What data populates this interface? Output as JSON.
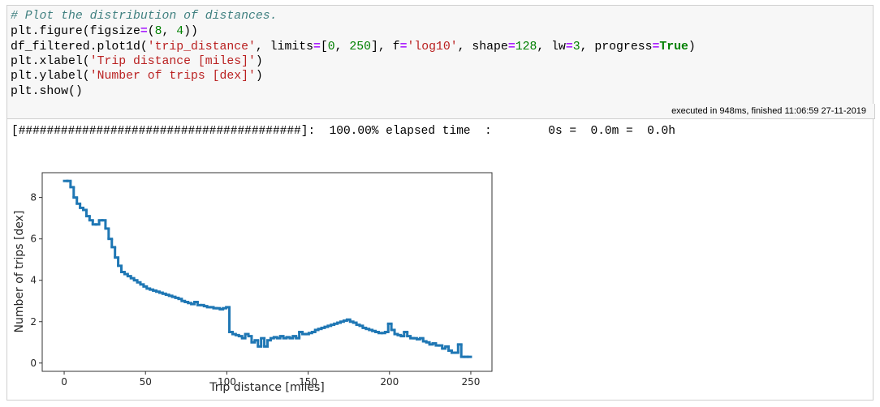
{
  "code": {
    "lines": [
      "# Plot the distribution of distances.",
      "plt.figure(figsize=(8, 4))",
      "df_filtered.plot1d('trip_distance', limits=[0, 250], f='log10', shape=128, lw=3, progress=True)",
      "plt.xlabel('Trip distance [miles]')",
      "plt.ylabel('Number of trips [dex]')",
      "plt.show()"
    ],
    "execution_info": "executed in 948ms, finished 11:06:59 27-11-2019"
  },
  "output": {
    "progress": "[########################################]:  100.00% elapsed time  :        0s =  0.0m =  0.0h"
  },
  "chart_data": {
    "type": "histogram",
    "xlabel": "Trip distance [miles]",
    "ylabel": "Number of trips [dex]",
    "color": "#1f77b4",
    "bins": [
      0,
      1.953125,
      3.90625,
      5.859375,
      7.8125,
      9.765625,
      11.71875,
      13.671875,
      15.625,
      17.578125,
      19.53125,
      21.484375,
      23.4375,
      25.390625,
      27.34375,
      29.296875,
      31.25,
      33.203125,
      35.15625,
      37.109375,
      39.0625,
      41.015625,
      42.96875,
      44.921875,
      46.875,
      48.828125,
      50.78125,
      52.734375,
      54.6875,
      56.640625,
      58.59375,
      60.546875,
      62.5,
      64.453125,
      66.40625,
      68.359375,
      70.3125,
      72.265625,
      74.21875,
      76.171875,
      78.125,
      80.078125,
      82.03125,
      83.984375,
      85.9375,
      87.890625,
      89.84375,
      91.796875,
      93.75,
      95.703125,
      97.65625,
      99.609375,
      101.5625,
      103.515625,
      105.46875,
      107.421875,
      109.375,
      111.328125,
      113.28125,
      115.234375,
      117.1875,
      119.140625,
      121.09375,
      123.046875,
      125,
      126.953125,
      128.90625,
      130.859375,
      132.8125,
      134.765625,
      136.71875,
      138.671875,
      140.625,
      142.578125,
      144.53125,
      146.484375,
      148.4375,
      150.390625,
      152.34375,
      154.296875,
      156.25,
      158.203125,
      160.15625,
      162.109375,
      164.0625,
      166.015625,
      167.96875,
      169.921875,
      171.875,
      173.828125,
      175.78125,
      177.734375,
      179.6875,
      181.640625,
      183.59375,
      185.546875,
      187.5,
      189.453125,
      191.40625,
      193.359375,
      195.3125,
      197.265625,
      199.21875,
      201.171875,
      203.125,
      205.078125,
      207.03125,
      208.984375,
      210.9375,
      212.890625,
      214.84375,
      216.796875,
      218.75,
      220.703125,
      222.65625,
      224.609375,
      226.5625,
      228.515625,
      230.46875,
      232.421875,
      234.375,
      236.328125,
      238.28125,
      240.234375,
      242.1875,
      244.140625,
      246.09375,
      248.046875,
      250
    ],
    "values": [
      8.8,
      8.8,
      8.5,
      8.0,
      7.7,
      7.5,
      7.4,
      7.1,
      6.9,
      6.7,
      6.7,
      6.9,
      6.9,
      6.5,
      6.0,
      5.6,
      5.1,
      4.7,
      4.4,
      4.3,
      4.2,
      4.1,
      4.0,
      3.9,
      3.8,
      3.7,
      3.6,
      3.55,
      3.5,
      3.45,
      3.4,
      3.35,
      3.3,
      3.25,
      3.2,
      3.15,
      3.1,
      3.0,
      2.95,
      2.9,
      2.85,
      2.95,
      2.8,
      2.8,
      2.75,
      2.7,
      2.7,
      2.65,
      2.65,
      2.6,
      2.65,
      2.7,
      1.5,
      1.4,
      1.35,
      1.3,
      1.2,
      1.4,
      1.3,
      1.0,
      1.1,
      0.8,
      1.2,
      0.8,
      1.1,
      1.2,
      1.25,
      1.2,
      1.3,
      1.2,
      1.25,
      1.2,
      1.3,
      1.2,
      1.5,
      1.4,
      1.4,
      1.45,
      1.5,
      1.6,
      1.65,
      1.7,
      1.75,
      1.8,
      1.85,
      1.9,
      1.95,
      2.0,
      2.05,
      2.1,
      2.0,
      1.95,
      1.85,
      1.8,
      1.7,
      1.65,
      1.6,
      1.55,
      1.5,
      1.45,
      1.45,
      1.5,
      1.9,
      1.6,
      1.4,
      1.35,
      1.3,
      1.5,
      1.3,
      1.2,
      1.2,
      1.15,
      1.2,
      1.05,
      1.0,
      0.9,
      0.95,
      0.85,
      0.85,
      0.7,
      0.8,
      0.6,
      0.5,
      0.5,
      0.9,
      0.3,
      0.3,
      0.3
    ],
    "xlim": [
      -13.5,
      263
    ],
    "ylim": [
      -0.4,
      9.2
    ],
    "xticks": [
      0,
      50,
      100,
      150,
      200,
      250
    ],
    "yticks": [
      0,
      2,
      4,
      6,
      8
    ]
  }
}
